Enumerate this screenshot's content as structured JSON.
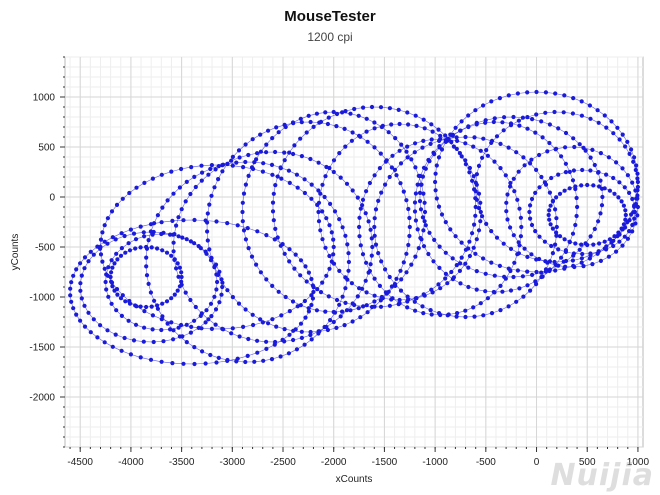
{
  "chart_data": {
    "type": "scatter",
    "title": "MouseTester",
    "subtitle": "1200 cpi",
    "xlabel": "xCounts",
    "ylabel": "yCounts",
    "xlim": [
      -4650,
      1050
    ],
    "ylim": [
      -2500,
      1400
    ],
    "xticks": [
      -4500,
      -4000,
      -3500,
      -3000,
      -2500,
      -2000,
      -1500,
      -1000,
      -500,
      0,
      500,
      1000
    ],
    "yticks": [
      1000,
      500,
      0,
      -500,
      -1000,
      -1500,
      -2000
    ],
    "grid": true,
    "series_color": "#1a1adb",
    "loops": [
      {
        "cx": -3800,
        "cy": -900,
        "rx": 700,
        "ry": 550
      },
      {
        "cx": -3700,
        "cy": -850,
        "rx": 550,
        "ry": 480
      },
      {
        "cx": -3850,
        "cy": -800,
        "rx": 350,
        "ry": 300
      },
      {
        "cx": -3400,
        "cy": -950,
        "rx": 1200,
        "ry": 720
      },
      {
        "cx": -3150,
        "cy": -500,
        "rx": 1150,
        "ry": 820
      },
      {
        "cx": -2850,
        "cy": -650,
        "rx": 1000,
        "ry": 1000
      },
      {
        "cx": -2600,
        "cy": -500,
        "rx": 980,
        "ry": 950
      },
      {
        "cx": -2250,
        "cy": -300,
        "rx": 1000,
        "ry": 1050
      },
      {
        "cx": -2000,
        "cy": -150,
        "rx": 900,
        "ry": 1000
      },
      {
        "cx": -1600,
        "cy": -100,
        "rx": 1000,
        "ry": 1000
      },
      {
        "cx": -1350,
        "cy": -150,
        "rx": 800,
        "ry": 880
      },
      {
        "cx": -950,
        "cy": -300,
        "rx": 800,
        "ry": 880
      },
      {
        "cx": -700,
        "cy": -300,
        "rx": 900,
        "ry": 900
      },
      {
        "cx": -400,
        "cy": -100,
        "rx": 800,
        "ry": 850
      },
      {
        "cx": -250,
        "cy": 0,
        "rx": 900,
        "ry": 800
      },
      {
        "cx": 0,
        "cy": 150,
        "rx": 1000,
        "ry": 900
      },
      {
        "cx": 200,
        "cy": 100,
        "rx": 800,
        "ry": 750
      },
      {
        "cx": 350,
        "cy": -100,
        "rx": 650,
        "ry": 600
      },
      {
        "cx": 450,
        "cy": -150,
        "rx": 520,
        "ry": 420
      },
      {
        "cx": 500,
        "cy": -180,
        "rx": 380,
        "ry": 300
      }
    ]
  },
  "watermark": "Nuijia"
}
